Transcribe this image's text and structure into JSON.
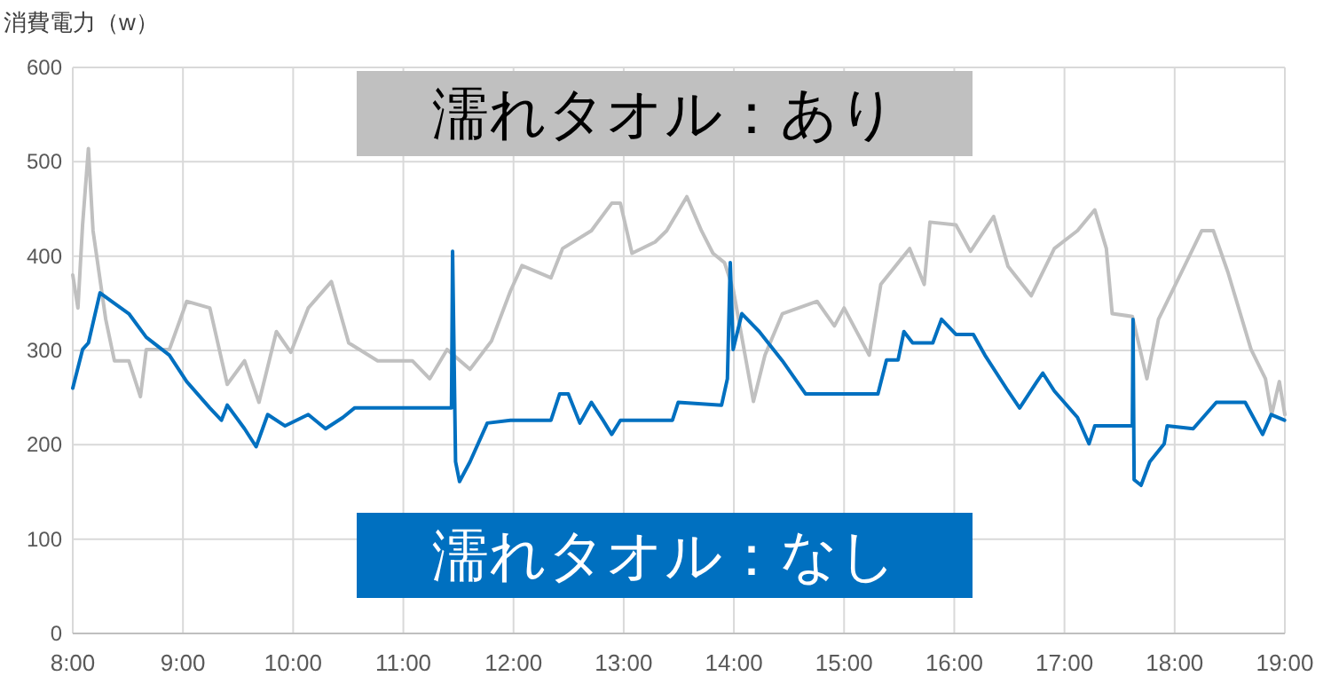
{
  "chart_data": {
    "type": "line",
    "ylabel": "消費電力（w）",
    "xlim": [
      8,
      19
    ],
    "xticks": [
      {
        "value": 8,
        "label": "8:00"
      },
      {
        "value": 9,
        "label": "9:00"
      },
      {
        "value": 10,
        "label": "10:00"
      },
      {
        "value": 11,
        "label": "11:00"
      },
      {
        "value": 12,
        "label": "12:00"
      },
      {
        "value": 13,
        "label": "13:00"
      },
      {
        "value": 14,
        "label": "14:00"
      },
      {
        "value": 15,
        "label": "15:00"
      },
      {
        "value": 16,
        "label": "16:00"
      },
      {
        "value": 17,
        "label": "17:00"
      },
      {
        "value": 18,
        "label": "18:00"
      },
      {
        "value": 19,
        "label": "19:00"
      }
    ],
    "ylim": [
      0,
      600
    ],
    "yticks": [
      0,
      100,
      200,
      300,
      400,
      500,
      600
    ],
    "grid": true,
    "marker": "none",
    "line_style": "solid",
    "series": [
      {
        "name": "濡れタオル：あり",
        "color": "#c0c0c0",
        "x": [
          8.0,
          8.047,
          8.089,
          8.142,
          8.184,
          8.299,
          8.378,
          8.509,
          8.614,
          8.667,
          8.877,
          9.034,
          9.244,
          9.402,
          9.559,
          9.69,
          9.848,
          9.979,
          10.137,
          10.347,
          10.504,
          10.767,
          11.082,
          11.239,
          11.397,
          11.605,
          11.8,
          11.972,
          12.077,
          12.34,
          12.445,
          12.707,
          12.891,
          12.97,
          13.075,
          13.285,
          13.39,
          13.573,
          13.705,
          13.81,
          13.915,
          13.993,
          14.177,
          14.282,
          14.44,
          14.755,
          14.912,
          15.0,
          15.228,
          15.333,
          15.595,
          15.727,
          15.779,
          16.015,
          16.147,
          16.357,
          16.488,
          16.698,
          16.908,
          17.118,
          17.275,
          17.38,
          17.433,
          17.616,
          17.748,
          17.853,
          18.063,
          18.246,
          18.351,
          18.483,
          18.693,
          18.824,
          18.88,
          18.95,
          19.0
        ],
        "values": [
          380,
          345,
          433,
          514,
          427,
          333,
          289,
          289,
          251,
          301,
          301,
          352,
          345,
          264,
          289,
          245,
          320,
          298,
          345,
          373,
          308,
          289,
          289,
          270,
          301,
          280,
          310,
          363,
          390,
          377,
          408,
          427,
          456,
          456,
          403,
          415,
          427,
          463,
          427,
          403,
          393,
          365,
          246,
          295,
          339,
          352,
          326,
          345,
          295,
          370,
          408,
          370,
          436,
          433,
          405,
          442,
          389,
          358,
          408,
          427,
          449,
          408,
          339,
          336,
          270,
          333,
          383,
          427,
          427,
          383,
          301,
          270,
          232,
          267,
          232
        ]
      },
      {
        "name": "濡れタオル：なし",
        "color": "#0070c0",
        "x": [
          8.0,
          8.089,
          8.142,
          8.247,
          8.352,
          8.509,
          8.667,
          8.877,
          9.034,
          9.244,
          9.349,
          9.402,
          9.559,
          9.664,
          9.769,
          9.927,
          10.137,
          10.294,
          10.452,
          10.557,
          10.767,
          11.397,
          11.437,
          11.447,
          11.474,
          11.51,
          11.605,
          11.762,
          11.972,
          12.34,
          12.419,
          12.497,
          12.602,
          12.707,
          12.812,
          12.891,
          12.97,
          13.442,
          13.495,
          13.888,
          13.941,
          13.967,
          13.993,
          14.072,
          14.23,
          14.44,
          14.65,
          15.307,
          15.385,
          15.49,
          15.543,
          15.622,
          15.805,
          15.884,
          16.015,
          16.173,
          16.278,
          16.488,
          16.593,
          16.75,
          16.803,
          16.908,
          17.118,
          17.223,
          17.275,
          17.616,
          17.622,
          17.632,
          17.695,
          17.774,
          17.905,
          17.932,
          18.168,
          18.378,
          18.64,
          18.798,
          18.876,
          18.997
        ],
        "values": [
          260,
          301,
          308,
          361,
          352,
          339,
          314,
          295,
          267,
          239,
          226,
          242,
          217,
          198,
          232,
          220,
          232,
          217,
          229,
          239,
          239,
          239,
          239,
          405,
          182,
          161,
          182,
          223,
          226,
          226,
          254,
          254,
          223,
          245,
          226,
          211,
          226,
          226,
          245,
          242,
          270,
          393,
          301,
          339,
          320,
          289,
          254,
          254,
          290,
          290,
          320,
          308,
          308,
          333,
          317,
          317,
          295,
          257,
          239,
          267,
          276,
          257,
          229,
          201,
          220,
          220,
          333,
          163,
          157,
          182,
          201,
          220,
          217,
          245,
          245,
          211,
          232,
          226
        ]
      }
    ]
  }
}
